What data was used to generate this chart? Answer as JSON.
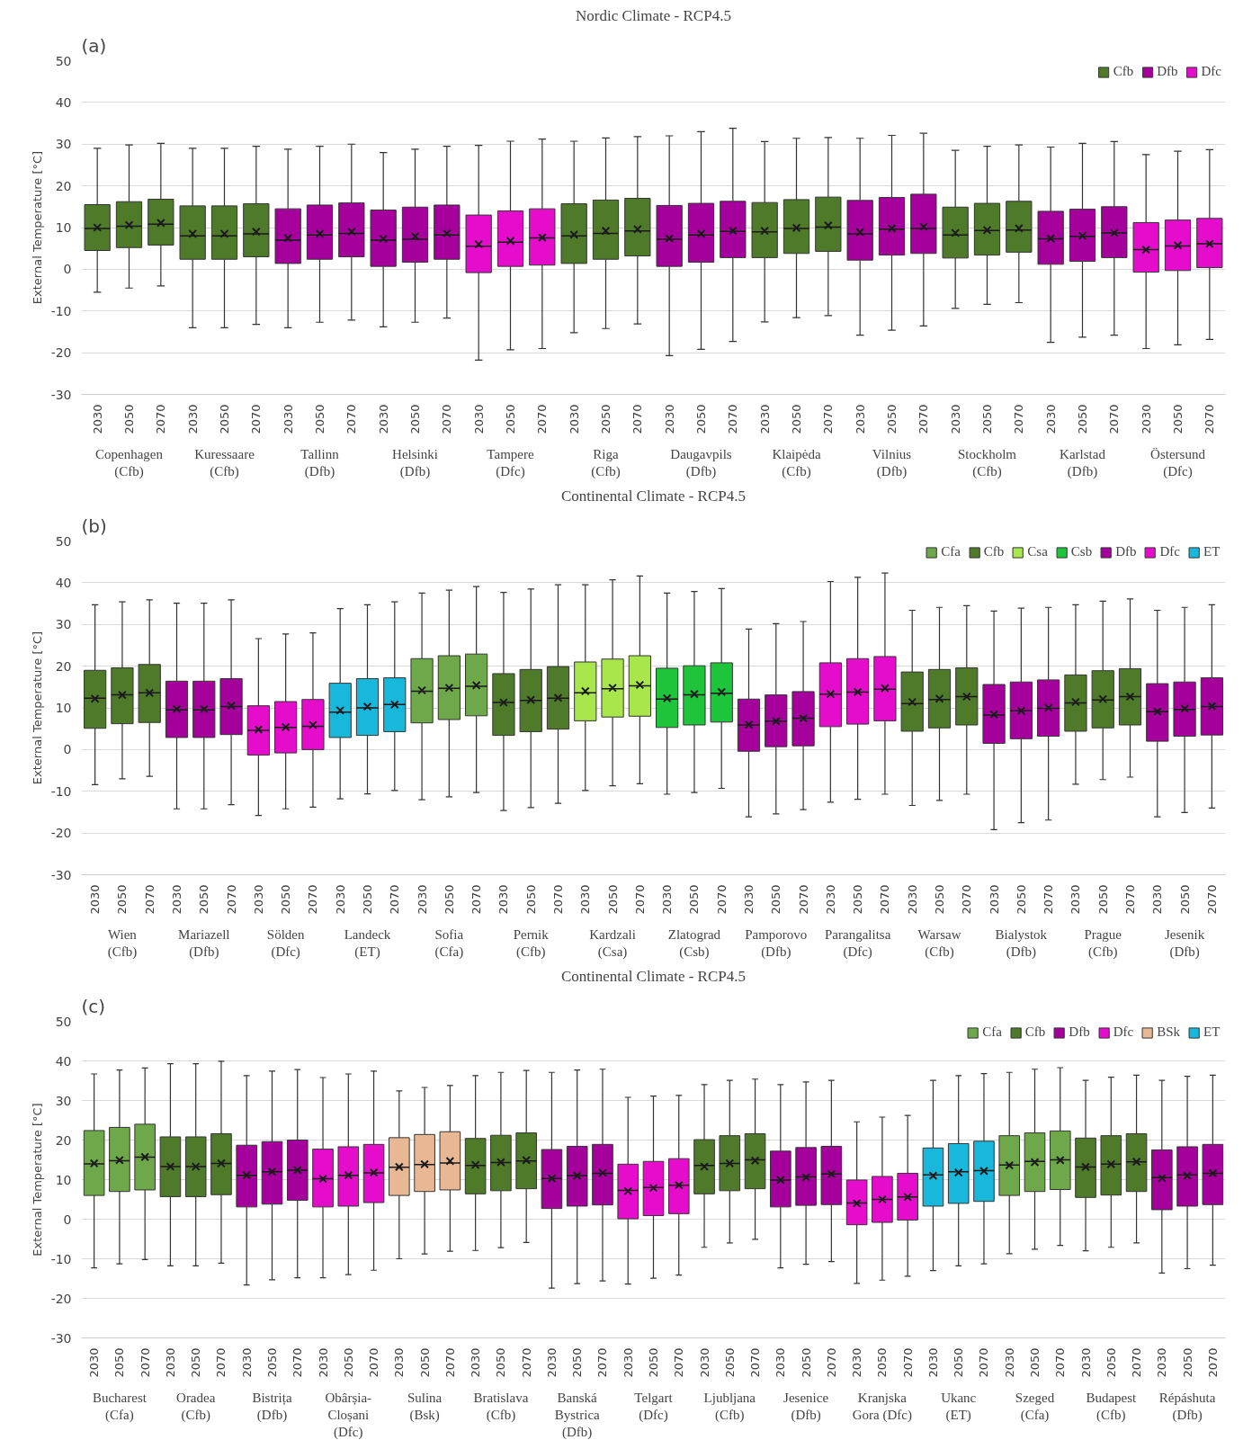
{
  "chart_data": [
    {
      "type": "box",
      "title": "Nordic Climate - RCP4.5",
      "ylabel": "External Temperature [°C]",
      "ylim": [
        -30,
        50
      ],
      "yticks": [
        -30,
        -20,
        -10,
        0,
        10,
        20,
        30,
        40,
        50
      ],
      "grid": "y",
      "legend": "top right",
      "categories": [
        "2030",
        "2050",
        "2070",
        "2030",
        "2050",
        "2070",
        "2030",
        "2050",
        "2070",
        "2030",
        "2050",
        "2070",
        "2030",
        "2050",
        "2070",
        "2030",
        "2050",
        "2070",
        "2030",
        "2050",
        "2070",
        "2030",
        "2050",
        "2070",
        "2030",
        "2050",
        "2070",
        "2030",
        "2050",
        "2070",
        "2030",
        "2050",
        "2070",
        "2030",
        "2050",
        "2070"
      ],
      "annotations": [
        "(a)",
        "Copenhagen\n(Cfb)",
        "Kuressaare\n(Cfb)",
        "Tallinn\n(Dfb)",
        "Helsinki\n(Dfb)",
        "Tampere\n(Dfc)",
        "Riga\n(Cfb)",
        "Daugavpils\n(Dfb)",
        "Klaipėda\n(Cfb)",
        "Vilnius\n(Dfb)",
        "Stockholm\n(Cfb)",
        "Karlstad\n(Dfb)",
        "Östersund\n(Dfc)"
      ],
      "series": [
        {
          "name": "Cfb",
          "color": "#4e7a2a",
          "boxes": [
            {
              "low": -5.5,
              "q1": 4.5,
              "median": 9.8,
              "q3": 15.5,
              "high": 29,
              "mean": 10
            },
            {
              "low": -4.5,
              "q1": 5.2,
              "median": 10.3,
              "q3": 16.2,
              "high": 29.8,
              "mean": 10.6
            },
            {
              "low": -4,
              "q1": 5.8,
              "median": 10.8,
              "q3": 16.8,
              "high": 30.2,
              "mean": 11.1
            },
            {
              "low": -14,
              "q1": 2.4,
              "median": 8,
              "q3": 15.2,
              "high": 29,
              "mean": 8.5
            },
            {
              "low": -14,
              "q1": 2.4,
              "median": 8,
              "q3": 15.2,
              "high": 29,
              "mean": 8.5
            },
            {
              "low": -13.2,
              "q1": 3,
              "median": 8.5,
              "q3": 15.7,
              "high": 29.5,
              "mean": 9
            },
            null,
            null,
            null,
            null,
            null,
            null,
            null,
            null,
            null,
            {
              "low": -15.2,
              "q1": 1.4,
              "median": 8,
              "q3": 15.7,
              "high": 30.7,
              "mean": 8.3
            },
            {
              "low": -14.2,
              "q1": 2.4,
              "median": 8.6,
              "q3": 16.6,
              "high": 31.5,
              "mean": 9.2
            },
            {
              "low": -13.1,
              "q1": 3.2,
              "median": 9.2,
              "q3": 17,
              "high": 31.8,
              "mean": 9.6
            },
            null,
            null,
            null,
            {
              "low": -12.6,
              "q1": 2.8,
              "median": 9,
              "q3": 16,
              "high": 30.6,
              "mean": 9.2
            },
            {
              "low": -11.6,
              "q1": 3.8,
              "median": 9.8,
              "q3": 16.7,
              "high": 31.4,
              "mean": 9.9
            },
            {
              "low": -11.1,
              "q1": 4.3,
              "median": 10.1,
              "q3": 17.3,
              "high": 31.6,
              "mean": 10.5
            },
            null,
            null,
            null,
            {
              "low": -9.4,
              "q1": 2.7,
              "median": 8.2,
              "q3": 14.9,
              "high": 28.5,
              "mean": 8.7
            },
            {
              "low": -8.4,
              "q1": 3.4,
              "median": 9.3,
              "q3": 15.8,
              "high": 29.5,
              "mean": 9.4
            },
            {
              "low": -8,
              "q1": 4.1,
              "median": 9.4,
              "q3": 16.3,
              "high": 29.8,
              "mean": 9.8
            },
            null,
            null,
            null,
            null,
            null,
            null
          ]
        },
        {
          "name": "Dfb",
          "color": "#a5009b",
          "boxes": [
            null,
            null,
            null,
            null,
            null,
            null,
            {
              "low": -14,
              "q1": 1.4,
              "median": 7,
              "q3": 14.5,
              "high": 28.8,
              "mean": 7.5
            },
            {
              "low": -12.7,
              "q1": 2.4,
              "median": 8.2,
              "q3": 15.4,
              "high": 29.5,
              "mean": 8.5
            },
            {
              "low": -12.2,
              "q1": 3,
              "median": 8.6,
              "q3": 15.9,
              "high": 30,
              "mean": 9
            },
            {
              "low": -13.8,
              "q1": 0.7,
              "median": 7,
              "q3": 14.2,
              "high": 28,
              "mean": 7.3
            },
            {
              "low": -12.7,
              "q1": 1.7,
              "median": 7.2,
              "q3": 14.9,
              "high": 28.8,
              "mean": 7.9
            },
            {
              "low": -11.7,
              "q1": 2.4,
              "median": 8.2,
              "q3": 15.4,
              "high": 29.5,
              "mean": 8.6
            },
            null,
            null,
            null,
            null,
            null,
            null,
            {
              "low": -20.7,
              "q1": 0.7,
              "median": 7.2,
              "q3": 15.3,
              "high": 32,
              "mean": 7.4
            },
            {
              "low": -19.2,
              "q1": 1.7,
              "median": 8.2,
              "q3": 15.8,
              "high": 33,
              "mean": 8.5
            },
            {
              "low": -17.3,
              "q1": 2.8,
              "median": 9.1,
              "q3": 16.3,
              "high": 33.8,
              "mean": 9.2
            },
            null,
            null,
            null,
            {
              "low": -15.8,
              "q1": 2.2,
              "median": 8.5,
              "q3": 16.5,
              "high": 31.4,
              "mean": 8.9
            },
            {
              "low": -14.6,
              "q1": 3.4,
              "median": 9.6,
              "q3": 17.2,
              "high": 32.1,
              "mean": 9.8
            },
            {
              "low": -13.6,
              "q1": 3.8,
              "median": 9.8,
              "q3": 18,
              "high": 32.6,
              "mean": 10.2
            },
            null,
            null,
            null,
            {
              "low": -17.5,
              "q1": 1.2,
              "median": 7.3,
              "q3": 13.9,
              "high": 29.3,
              "mean": 7.4
            },
            {
              "low": -16.3,
              "q1": 1.9,
              "median": 7.9,
              "q3": 14.4,
              "high": 30.2,
              "mean": 8
            },
            {
              "low": -15.8,
              "q1": 2.8,
              "median": 8.7,
              "q3": 15,
              "high": 30.6,
              "mean": 8.7
            },
            null,
            null,
            null
          ]
        },
        {
          "name": "Dfc",
          "color": "#e60ccc",
          "boxes": [
            null,
            null,
            null,
            null,
            null,
            null,
            null,
            null,
            null,
            null,
            null,
            null,
            {
              "low": -21.8,
              "q1": -0.8,
              "median": 5.5,
              "q3": 13,
              "high": 29.7,
              "mean": 6
            },
            {
              "low": -19.3,
              "q1": 0.7,
              "median": 6.5,
              "q3": 14,
              "high": 30.7,
              "mean": 6.8
            },
            {
              "low": -19,
              "q1": 1,
              "median": 7.5,
              "q3": 14.5,
              "high": 31.2,
              "mean": 7.6
            },
            null,
            null,
            null,
            null,
            null,
            null,
            null,
            null,
            null,
            null,
            null,
            null,
            null,
            null,
            null,
            null,
            null,
            null,
            {
              "low": -19,
              "q1": -0.7,
              "median": 4.7,
              "q3": 11.2,
              "high": 27.5,
              "mean": 4.7
            },
            {
              "low": -18.1,
              "q1": -0.3,
              "median": 5.6,
              "q3": 11.8,
              "high": 28.3,
              "mean": 5.7
            },
            {
              "low": -16.8,
              "q1": 0.4,
              "median": 6.1,
              "q3": 12.2,
              "high": 28.7,
              "mean": 6.1
            }
          ]
        }
      ]
    },
    {
      "type": "box",
      "title": "Continental Climate - RCP4.5",
      "ylabel": "External Temperature [°C]",
      "ylim": [
        -30,
        50
      ],
      "yticks": [
        -30,
        -20,
        -10,
        0,
        10,
        20,
        30,
        40,
        50
      ],
      "grid": "y",
      "legend": "top right",
      "categories": [
        "2030",
        "2050",
        "2070",
        "2030",
        "2050",
        "2070",
        "2030",
        "2050",
        "2070",
        "2030",
        "2050",
        "2070",
        "2030",
        "2050",
        "2070",
        "2030",
        "2050",
        "2070",
        "2030",
        "2050",
        "2070",
        "2030",
        "2050",
        "2070",
        "2030",
        "2050",
        "2070",
        "2030",
        "2050",
        "2070",
        "2030",
        "2050",
        "2070",
        "2030",
        "2050",
        "2070",
        "2030",
        "2050",
        "2070",
        "2030",
        "2050",
        "2070"
      ],
      "annotations": [
        "(b)",
        "Wien\n(Cfb)",
        "Mariazell\n(Dfb)",
        "Sölden\n(Dfc)",
        "Landeck\n(ET)",
        "Sofia\n(Cfa)",
        "Pernik\n(Cfb)",
        "Kardzali\n(Csa)",
        "Zlatograd\n(Csb)",
        "Pamporovo\n(Dfb)",
        "Parangalitsa\n(Dfc)",
        "Warsaw\n(Cfb)",
        "Bialystok\n(Dfb)",
        "Prague\n(Cfb)",
        "Jesenik\n(Dfb)"
      ],
      "series": [
        {
          "name": "Cfa",
          "color": "#6fa84a",
          "boxes": [
            null,
            null,
            null,
            null,
            null,
            null,
            null,
            null,
            null,
            null,
            null,
            null,
            {
              "low": -12,
              "q1": 6.4,
              "median": 14,
              "q3": 21.8,
              "high": 37.5,
              "mean": 14.2
            },
            {
              "low": -11.3,
              "q1": 7.2,
              "median": 14.7,
              "q3": 22.5,
              "high": 38.2,
              "mean": 14.8
            },
            {
              "low": -10.3,
              "q1": 8.1,
              "median": 15.2,
              "q3": 22.9,
              "high": 39.1,
              "mean": 15.4
            },
            null,
            null,
            null,
            null,
            null,
            null,
            null,
            null,
            null,
            null,
            null,
            null,
            null,
            null,
            null,
            null,
            null,
            null,
            null,
            null,
            null,
            null,
            null,
            null,
            null,
            null,
            null
          ]
        },
        {
          "name": "Cfb",
          "color": "#4e7a2a",
          "boxes": [
            {
              "low": -8.4,
              "q1": 5.1,
              "median": 12.3,
              "q3": 19,
              "high": 34.7,
              "mean": 12.2
            },
            {
              "low": -7,
              "q1": 6.2,
              "median": 13.1,
              "q3": 19.6,
              "high": 35.4,
              "mean": 13.1
            },
            {
              "low": -6.4,
              "q1": 6.5,
              "median": 13.6,
              "q3": 20.4,
              "high": 35.9,
              "mean": 13.6
            },
            null,
            null,
            null,
            null,
            null,
            null,
            null,
            null,
            null,
            null,
            null,
            null,
            {
              "low": -14.6,
              "q1": 3.4,
              "median": 11.3,
              "q3": 18.2,
              "high": 37.7,
              "mean": 11.3
            },
            {
              "low": -13.9,
              "q1": 4.3,
              "median": 11.8,
              "q3": 19.2,
              "high": 38.5,
              "mean": 11.9
            },
            {
              "low": -12.9,
              "q1": 4.9,
              "median": 12.3,
              "q3": 19.9,
              "high": 39.5,
              "mean": 12.4
            },
            null,
            null,
            null,
            null,
            null,
            null,
            null,
            null,
            null,
            null,
            null,
            null,
            {
              "low": -13.4,
              "q1": 4.4,
              "median": 11,
              "q3": 18.6,
              "high": 33.4,
              "mean": 11.4
            },
            {
              "low": -12.2,
              "q1": 5.2,
              "median": 12,
              "q3": 19.2,
              "high": 34.1,
              "mean": 12.2
            },
            {
              "low": -10.7,
              "q1": 5.9,
              "median": 12.7,
              "q3": 19.6,
              "high": 34.5,
              "mean": 12.7
            },
            null,
            null,
            null,
            {
              "low": -8.3,
              "q1": 4.4,
              "median": 11.2,
              "q3": 17.9,
              "high": 34.7,
              "mean": 11.4
            },
            {
              "low": -7.2,
              "q1": 5.2,
              "median": 11.9,
              "q3": 18.9,
              "high": 35.6,
              "mean": 12.1
            },
            {
              "low": -6.6,
              "q1": 5.9,
              "median": 12.7,
              "q3": 19.4,
              "high": 36.1,
              "mean": 12.7
            },
            null,
            null,
            null
          ]
        },
        {
          "name": "Csa",
          "color": "#a8e64c",
          "boxes": [
            null,
            null,
            null,
            null,
            null,
            null,
            null,
            null,
            null,
            null,
            null,
            null,
            null,
            null,
            null,
            null,
            null,
            null,
            {
              "low": -9.8,
              "q1": 6.9,
              "median": 13.6,
              "q3": 21,
              "high": 39.5,
              "mean": 14
            },
            {
              "low": -8.7,
              "q1": 7.8,
              "median": 14.6,
              "q3": 21.7,
              "high": 40.7,
              "mean": 14.8
            },
            {
              "low": -8.2,
              "q1": 8,
              "median": 15.3,
              "q3": 22.5,
              "high": 41.6,
              "mean": 15.5
            },
            null,
            null,
            null,
            null,
            null,
            null,
            null,
            null,
            null,
            null,
            null,
            null,
            null,
            null,
            null,
            null,
            null,
            null,
            null,
            null,
            null
          ]
        },
        {
          "name": "Csb",
          "color": "#1ec43a",
          "boxes": [
            null,
            null,
            null,
            null,
            null,
            null,
            null,
            null,
            null,
            null,
            null,
            null,
            null,
            null,
            null,
            null,
            null,
            null,
            null,
            null,
            null,
            {
              "low": -10.7,
              "q1": 5.3,
              "median": 12.1,
              "q3": 19.5,
              "high": 37.5,
              "mean": 12.3
            },
            {
              "low": -10.3,
              "q1": 5.9,
              "median": 13.1,
              "q3": 20.1,
              "high": 37.9,
              "mean": 13.3
            },
            {
              "low": -9.3,
              "q1": 6.6,
              "median": 13.5,
              "q3": 20.8,
              "high": 38.6,
              "mean": 13.8
            },
            null,
            null,
            null,
            null,
            null,
            null,
            null,
            null,
            null,
            null,
            null,
            null,
            null,
            null,
            null,
            null,
            null,
            null
          ]
        },
        {
          "name": "Dfb",
          "color": "#a5009b",
          "boxes": [
            null,
            null,
            null,
            {
              "low": -14.2,
              "q1": 2.9,
              "median": 9.5,
              "q3": 16.4,
              "high": 35.1,
              "mean": 9.7
            },
            {
              "low": -14.2,
              "q1": 2.9,
              "median": 9.5,
              "q3": 16.4,
              "high": 35.1,
              "mean": 9.7
            },
            {
              "low": -13.2,
              "q1": 3.6,
              "median": 10.3,
              "q3": 17,
              "high": 35.9,
              "mean": 10.5
            },
            null,
            null,
            null,
            null,
            null,
            null,
            null,
            null,
            null,
            null,
            null,
            null,
            null,
            null,
            null,
            null,
            null,
            null,
            {
              "low": -16.1,
              "q1": -0.4,
              "median": 5.9,
              "q3": 12.1,
              "high": 28.9,
              "mean": 6
            },
            {
              "low": -15.4,
              "q1": 0.7,
              "median": 6.8,
              "q3": 13.1,
              "high": 30.2,
              "mean": 6.8
            },
            {
              "low": -14.4,
              "q1": 0.9,
              "median": 7.5,
              "q3": 13.9,
              "high": 30.7,
              "mean": 7.5
            },
            null,
            null,
            null,
            null,
            null,
            null,
            {
              "low": -19.2,
              "q1": 1.5,
              "median": 8.3,
              "q3": 15.6,
              "high": 33.2,
              "mean": 8.4
            },
            {
              "low": -17.5,
              "q1": 2.6,
              "median": 9.3,
              "q3": 16.2,
              "high": 33.9,
              "mean": 9.3
            },
            {
              "low": -16.9,
              "q1": 3.2,
              "median": 9.9,
              "q3": 16.7,
              "high": 34.1,
              "mean": 10
            },
            null,
            null,
            null,
            {
              "low": -16.1,
              "q1": 2,
              "median": 9.1,
              "q3": 15.8,
              "high": 33.4,
              "mean": 9.1
            },
            {
              "low": -15.1,
              "q1": 3.2,
              "median": 9.6,
              "q3": 16.2,
              "high": 34.1,
              "mean": 9.8
            },
            {
              "low": -14,
              "q1": 3.5,
              "median": 10.3,
              "q3": 17.2,
              "high": 34.7,
              "mean": 10.4
            }
          ]
        },
        {
          "name": "Dfc",
          "color": "#e60ccc",
          "boxes": [
            null,
            null,
            null,
            null,
            null,
            null,
            {
              "low": -15.8,
              "q1": -1.3,
              "median": 4.6,
              "q3": 10.5,
              "high": 26.6,
              "mean": 4.8
            },
            {
              "low": -14.2,
              "q1": -0.8,
              "median": 5.3,
              "q3": 11.5,
              "high": 27.7,
              "mean": 5.4
            },
            {
              "low": -13.8,
              "q1": 0,
              "median": 5.6,
              "q3": 12,
              "high": 28,
              "mean": 5.9
            },
            null,
            null,
            null,
            null,
            null,
            null,
            null,
            null,
            null,
            null,
            null,
            null,
            null,
            null,
            null,
            null,
            null,
            null,
            {
              "low": -12.6,
              "q1": 5.5,
              "median": 13.3,
              "q3": 20.8,
              "high": 40.3,
              "mean": 13.3
            },
            {
              "low": -11.9,
              "q1": 6.1,
              "median": 13.8,
              "q3": 21.8,
              "high": 41.3,
              "mean": 13.8
            },
            {
              "low": -10.7,
              "q1": 6.9,
              "median": 14.5,
              "q3": 22.3,
              "high": 42.3,
              "mean": 14.7
            },
            null,
            null,
            null,
            null,
            null,
            null,
            null,
            null,
            null,
            null,
            null,
            null
          ]
        },
        {
          "name": "ET",
          "color": "#18b8dc",
          "boxes": [
            null,
            null,
            null,
            null,
            null,
            null,
            null,
            null,
            null,
            {
              "low": -11.8,
              "q1": 2.9,
              "median": 9,
              "q3": 15.9,
              "high": 33.8,
              "mean": 9.4
            },
            {
              "low": -10.6,
              "q1": 3.4,
              "median": 10,
              "q3": 17,
              "high": 34.7,
              "mean": 10.3
            },
            {
              "low": -9.8,
              "q1": 4.3,
              "median": 10.8,
              "q3": 17.2,
              "high": 35.4,
              "mean": 10.8
            },
            null,
            null,
            null,
            null,
            null,
            null,
            null,
            null,
            null,
            null,
            null,
            null,
            null,
            null,
            null,
            null,
            null,
            null,
            null,
            null,
            null,
            null,
            null,
            null,
            null,
            null,
            null,
            null,
            null,
            null
          ]
        }
      ]
    },
    {
      "type": "box",
      "title": "Continental Climate - RCP4.5",
      "ylabel": "External Temperature [°C]",
      "ylim": [
        -30,
        50
      ],
      "yticks": [
        -30,
        -20,
        -10,
        0,
        10,
        20,
        30,
        40,
        50
      ],
      "grid": "y",
      "legend": "top right",
      "categories": [
        "2030",
        "2050",
        "2070",
        "2030",
        "2050",
        "2070",
        "2030",
        "2050",
        "2070",
        "2030",
        "2050",
        "2070",
        "2030",
        "2050",
        "2070",
        "2030",
        "2050",
        "2070",
        "2030",
        "2050",
        "2070",
        "2030",
        "2050",
        "2070",
        "2030",
        "2050",
        "2070",
        "2030",
        "2050",
        "2070",
        "2030",
        "2050",
        "2070",
        "2030",
        "2050",
        "2070",
        "2030",
        "2050",
        "2070",
        "2030",
        "2050",
        "2070",
        "2030",
        "2050",
        "2070"
      ],
      "annotations": [
        "(c)",
        "Bucharest\n(Cfa)",
        "Oradea\n(Cfb)",
        "Bistrița\n(Dfb)",
        "Obârșia-\nCloșani\n(Dfc)",
        "Sulina\n(Bsk)",
        "Bratislava\n(Cfb)",
        "Banská\nBystrica\n(Dfb)",
        "Telgart\n(Dfc)",
        "Ljubljana\n(Cfb)",
        "Jesenice\n(Dfb)",
        "Kranjska\nGora (Dfc)",
        "Ukanc\n(ET)",
        "Szeged\n(Cfa)",
        "Budapest\n(Cfb)",
        "Répáshuta\n(Dfb)"
      ],
      "series": [
        {
          "name": "Cfa",
          "color": "#6fa84a",
          "boxes": [
            {
              "low": -12.3,
              "q1": 6,
              "median": 14,
              "q3": 22.4,
              "high": 36.7,
              "mean": 14.1
            },
            {
              "low": -11.3,
              "q1": 7,
              "median": 14.8,
              "q3": 23.2,
              "high": 37.7,
              "mean": 14.9
            },
            {
              "low": -10.2,
              "q1": 7.4,
              "median": 15.7,
              "q3": 24,
              "high": 38.2,
              "mean": 15.7
            },
            null,
            null,
            null,
            null,
            null,
            null,
            null,
            null,
            null,
            null,
            null,
            null,
            null,
            null,
            null,
            null,
            null,
            null,
            null,
            null,
            null,
            null,
            null,
            null,
            null,
            null,
            null,
            null,
            null,
            null,
            null,
            null,
            null,
            {
              "low": -8.7,
              "q1": 6,
              "median": 13.7,
              "q3": 21.1,
              "high": 37.1,
              "mean": 13.6
            },
            {
              "low": -7.6,
              "q1": 7,
              "median": 14.6,
              "q3": 21.8,
              "high": 37.9,
              "mean": 14.4
            },
            {
              "low": -6.6,
              "q1": 7.5,
              "median": 15,
              "q3": 22.3,
              "high": 38.3,
              "mean": 14.9
            },
            null,
            null,
            null,
            null,
            null,
            null
          ]
        },
        {
          "name": "Cfb",
          "color": "#4e7a2a",
          "boxes": [
            null,
            null,
            null,
            {
              "low": -11.8,
              "q1": 5.7,
              "median": 13.3,
              "q3": 20.8,
              "high": 39.3,
              "mean": 13.3
            },
            {
              "low": -11.8,
              "q1": 5.7,
              "median": 13.3,
              "q3": 20.8,
              "high": 39.3,
              "mean": 13.3
            },
            {
              "low": -11.1,
              "q1": 6.2,
              "median": 14.1,
              "q3": 21.6,
              "high": 39.9,
              "mean": 14.1
            },
            null,
            null,
            null,
            null,
            null,
            null,
            null,
            null,
            null,
            {
              "low": -7.9,
              "q1": 6.4,
              "median": 13.6,
              "q3": 20.4,
              "high": 36.3,
              "mean": 13.7
            },
            {
              "low": -7.2,
              "q1": 7.2,
              "median": 14.3,
              "q3": 21.2,
              "high": 37.1,
              "mean": 14.4
            },
            {
              "low": -5.9,
              "q1": 7.7,
              "median": 14.7,
              "q3": 21.8,
              "high": 37.6,
              "mean": 14.9
            },
            null,
            null,
            null,
            null,
            null,
            null,
            {
              "low": -7.1,
              "q1": 6.4,
              "median": 13.6,
              "q3": 20.1,
              "high": 34,
              "mean": 13.3
            },
            {
              "low": -6,
              "q1": 7.2,
              "median": 14.1,
              "q3": 21.1,
              "high": 35.1,
              "mean": 14.1
            },
            {
              "low": -5.1,
              "q1": 7.7,
              "median": 15,
              "q3": 21.6,
              "high": 35.4,
              "mean": 14.8
            },
            null,
            null,
            null,
            null,
            null,
            null,
            null,
            null,
            null,
            null,
            null,
            null,
            {
              "low": -8,
              "q1": 5.5,
              "median": 13.2,
              "q3": 20.5,
              "high": 35.1,
              "mean": 13.2
            },
            {
              "low": -7.1,
              "q1": 6.1,
              "median": 13.9,
              "q3": 21.1,
              "high": 35.9,
              "mean": 13.9
            },
            {
              "low": -6,
              "q1": 7,
              "median": 14.5,
              "q3": 21.6,
              "high": 36.4,
              "mean": 14.5
            },
            null,
            null,
            null
          ]
        },
        {
          "name": "Dfb",
          "color": "#a5009b",
          "boxes": [
            null,
            null,
            null,
            null,
            null,
            null,
            {
              "low": -16.6,
              "q1": 3.1,
              "median": 11.1,
              "q3": 18.7,
              "high": 36.3,
              "mean": 11.1
            },
            {
              "low": -15.3,
              "q1": 3.8,
              "median": 12,
              "q3": 19.6,
              "high": 37.4,
              "mean": 12
            },
            {
              "low": -14.8,
              "q1": 4.8,
              "median": 12.4,
              "q3": 20,
              "high": 37.8,
              "mean": 12.4
            },
            null,
            null,
            null,
            null,
            null,
            null,
            null,
            null,
            null,
            {
              "low": -17.4,
              "q1": 2.7,
              "median": 10.3,
              "q3": 17.6,
              "high": 37.1,
              "mean": 10.3
            },
            {
              "low": -16.3,
              "q1": 3.3,
              "median": 11,
              "q3": 18.4,
              "high": 37.7,
              "mean": 11
            },
            {
              "low": -15.6,
              "q1": 3.6,
              "median": 11.6,
              "q3": 18.9,
              "high": 37.9,
              "mean": 11.7
            },
            null,
            null,
            null,
            null,
            null,
            null,
            {
              "low": -12.3,
              "q1": 3.1,
              "median": 9.9,
              "q3": 17.2,
              "high": 34,
              "mean": 9.9
            },
            {
              "low": -11.4,
              "q1": 3.5,
              "median": 10.7,
              "q3": 18.1,
              "high": 34.7,
              "mean": 10.6
            },
            {
              "low": -10.7,
              "q1": 3.7,
              "median": 11.4,
              "q3": 18.4,
              "high": 35.1,
              "mean": 11.4
            },
            null,
            null,
            null,
            null,
            null,
            null,
            null,
            null,
            null,
            null,
            null,
            null,
            {
              "low": -13.6,
              "q1": 2.4,
              "median": 10.5,
              "q3": 17.5,
              "high": 35.1,
              "mean": 10.4
            },
            {
              "low": -12.5,
              "q1": 3.3,
              "median": 11.2,
              "q3": 18.3,
              "high": 36.1,
              "mean": 11
            },
            {
              "low": -11.6,
              "q1": 3.7,
              "median": 11.6,
              "q3": 18.9,
              "high": 36.4,
              "mean": 11.6
            }
          ]
        },
        {
          "name": "Dfc",
          "color": "#e60ccc",
          "boxes": [
            null,
            null,
            null,
            null,
            null,
            null,
            null,
            null,
            null,
            {
              "low": -14.8,
              "q1": 3.1,
              "median": 10.2,
              "q3": 17.7,
              "high": 35.8,
              "mean": 10.2
            },
            {
              "low": -14,
              "q1": 3.3,
              "median": 11.1,
              "q3": 18.3,
              "high": 36.7,
              "mean": 11.1
            },
            {
              "low": -12.9,
              "q1": 4.2,
              "median": 11.7,
              "q3": 18.9,
              "high": 37.4,
              "mean": 11.8
            },
            null,
            null,
            null,
            null,
            null,
            null,
            null,
            null,
            null,
            {
              "low": -16.4,
              "q1": 0.1,
              "median": 7.3,
              "q3": 13.9,
              "high": 30.8,
              "mean": 7.1
            },
            {
              "low": -14.9,
              "q1": 0.9,
              "median": 8,
              "q3": 14.6,
              "high": 31.1,
              "mean": 7.9
            },
            {
              "low": -14.1,
              "q1": 1.4,
              "median": 8.6,
              "q3": 15.3,
              "high": 31.3,
              "mean": 8.6
            },
            null,
            null,
            null,
            null,
            null,
            null,
            {
              "low": -16.2,
              "q1": -1.4,
              "median": 4.1,
              "q3": 9.9,
              "high": 24.6,
              "mean": 4
            },
            {
              "low": -15.4,
              "q1": -0.8,
              "median": 5,
              "q3": 10.8,
              "high": 25.8,
              "mean": 5
            },
            {
              "low": -14.4,
              "q1": -0.2,
              "median": 5.6,
              "q3": 11.6,
              "high": 26.2,
              "mean": 5.6
            },
            null,
            null,
            null,
            null,
            null,
            null,
            null,
            null,
            null,
            null,
            null,
            null
          ]
        },
        {
          "name": "BSk",
          "color": "#e8b894",
          "boxes": [
            null,
            null,
            null,
            null,
            null,
            null,
            null,
            null,
            null,
            null,
            null,
            null,
            {
              "low": -10,
              "q1": 6,
              "median": 13.1,
              "q3": 20.6,
              "high": 32.4,
              "mean": 13.2
            },
            {
              "low": -8.8,
              "q1": 7,
              "median": 13.8,
              "q3": 21.4,
              "high": 33.3,
              "mean": 13.9
            },
            {
              "low": -8.1,
              "q1": 7.4,
              "median": 14.2,
              "q3": 22.1,
              "high": 33.8,
              "mean": 14.7
            },
            null,
            null,
            null,
            null,
            null,
            null,
            null,
            null,
            null,
            null,
            null,
            null,
            null,
            null,
            null,
            null,
            null,
            null,
            null,
            null,
            null,
            null,
            null,
            null,
            null,
            null,
            null,
            null,
            null,
            null
          ]
        },
        {
          "name": "ET",
          "color": "#18b8dc",
          "boxes": [
            null,
            null,
            null,
            null,
            null,
            null,
            null,
            null,
            null,
            null,
            null,
            null,
            null,
            null,
            null,
            null,
            null,
            null,
            null,
            null,
            null,
            null,
            null,
            null,
            null,
            null,
            null,
            null,
            null,
            null,
            null,
            null,
            null,
            {
              "low": -13,
              "q1": 3.3,
              "median": 11.2,
              "q3": 18,
              "high": 35.1,
              "mean": 11
            },
            {
              "low": -11.8,
              "q1": 4,
              "median": 12,
              "q3": 19.1,
              "high": 36.3,
              "mean": 11.8
            },
            {
              "low": -11.3,
              "q1": 4.5,
              "median": 12.3,
              "q3": 19.7,
              "high": 36.8,
              "mean": 12.2
            },
            null,
            null,
            null,
            null,
            null,
            null,
            null,
            null,
            null
          ]
        }
      ]
    }
  ]
}
